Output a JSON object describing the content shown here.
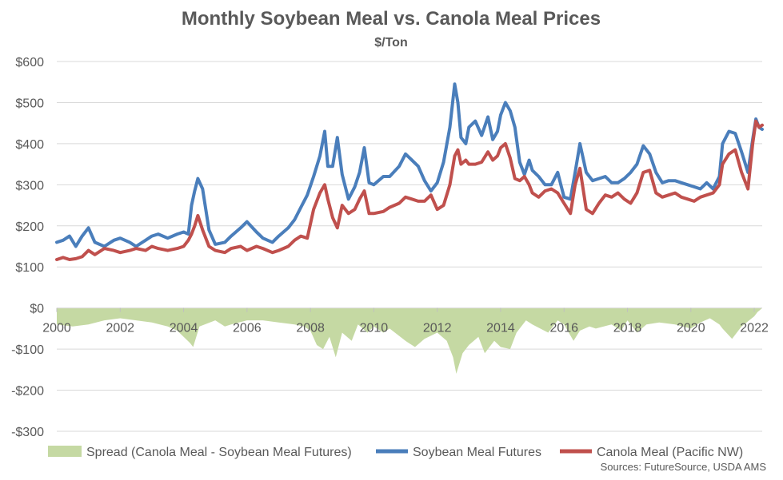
{
  "chart_data": {
    "type": "line",
    "title": "Monthly Soybean Meal vs. Canola Meal Prices",
    "subtitle": "$/Ton",
    "source": "Sources: FutureSource, USDA AMS",
    "ylim": [
      -300,
      600
    ],
    "y_ticks": [
      -300,
      -200,
      -100,
      0,
      100,
      200,
      300,
      400,
      500,
      600
    ],
    "y_tick_labels": [
      "-$300",
      "-$200",
      "-$100",
      "$0",
      "$100",
      "$200",
      "$300",
      "$400",
      "$500",
      "$600"
    ],
    "x_ticks": [
      2000,
      2002,
      2004,
      2006,
      2008,
      2010,
      2012,
      2014,
      2016,
      2018,
      2020,
      2022
    ],
    "x_tick_labels": [
      "2000",
      "2002",
      "2004",
      "2006",
      "2008",
      "2010",
      "2012",
      "2014",
      "2016",
      "2018",
      "2020",
      "2022"
    ],
    "xlim": [
      2000.0,
      2022.25
    ],
    "grid": "horizontal",
    "legend_position": "bottom",
    "series": [
      {
        "name": "Spread (Canola Meal - Soybean Meal Futures)",
        "type": "area",
        "color": "#c5d9a3",
        "x": [
          2000.0,
          2000.5,
          2001.0,
          2001.5,
          2002.0,
          2002.5,
          2003.0,
          2003.5,
          2003.8,
          2004.0,
          2004.2,
          2004.3,
          2004.5,
          2005.0,
          2005.3,
          2005.5,
          2006.0,
          2006.5,
          2007.0,
          2007.5,
          2007.8,
          2008.0,
          2008.2,
          2008.4,
          2008.6,
          2008.8,
          2009.0,
          2009.3,
          2009.5,
          2009.8,
          2010.0,
          2010.3,
          2010.5,
          2011.0,
          2011.3,
          2011.6,
          2012.0,
          2012.3,
          2012.5,
          2012.6,
          2012.8,
          2013.0,
          2013.3,
          2013.5,
          2013.8,
          2014.0,
          2014.3,
          2014.5,
          2014.8,
          2015.0,
          2015.5,
          2015.8,
          2016.0,
          2016.3,
          2016.5,
          2016.8,
          2017.0,
          2017.5,
          2017.8,
          2018.0,
          2018.3,
          2018.6,
          2019.0,
          2019.5,
          2020.0,
          2020.3,
          2020.6,
          2020.9,
          2021.0,
          2021.3,
          2021.6,
          2022.0,
          2022.1,
          2022.25
        ],
        "values": [
          -40,
          -45,
          -40,
          -30,
          -25,
          -30,
          -35,
          -45,
          -55,
          -70,
          -85,
          -95,
          -45,
          -30,
          -45,
          -40,
          -30,
          -30,
          -35,
          -40,
          -45,
          -55,
          -90,
          -100,
          -70,
          -120,
          -60,
          -80,
          -40,
          -60,
          -45,
          -60,
          -50,
          -80,
          -95,
          -75,
          -60,
          -80,
          -120,
          -160,
          -110,
          -90,
          -70,
          -110,
          -80,
          -95,
          -100,
          -60,
          -30,
          -40,
          -60,
          -30,
          -40,
          -80,
          -55,
          -45,
          -50,
          -40,
          -55,
          -30,
          -60,
          -40,
          -35,
          -40,
          -50,
          -35,
          -25,
          -40,
          -50,
          -75,
          -45,
          -20,
          -10,
          0
        ]
      },
      {
        "name": "Soybean Meal Futures",
        "type": "line",
        "color": "#4a7ebb",
        "x": [
          2000.0,
          2000.2,
          2000.4,
          2000.6,
          2000.8,
          2001.0,
          2001.2,
          2001.5,
          2001.8,
          2002.0,
          2002.3,
          2002.5,
          2002.8,
          2003.0,
          2003.2,
          2003.5,
          2003.8,
          2004.0,
          2004.15,
          2004.25,
          2004.35,
          2004.45,
          2004.6,
          2004.8,
          2005.0,
          2005.3,
          2005.5,
          2005.8,
          2006.0,
          2006.3,
          2006.5,
          2006.8,
          2007.0,
          2007.3,
          2007.5,
          2007.7,
          2007.9,
          2008.1,
          2008.3,
          2008.45,
          2008.55,
          2008.7,
          2008.85,
          2009.0,
          2009.2,
          2009.4,
          2009.55,
          2009.7,
          2009.85,
          2010.0,
          2010.3,
          2010.5,
          2010.8,
          2011.0,
          2011.2,
          2011.4,
          2011.6,
          2011.8,
          2012.0,
          2012.2,
          2012.4,
          2012.55,
          2012.65,
          2012.75,
          2012.9,
          2013.0,
          2013.2,
          2013.4,
          2013.6,
          2013.75,
          2013.9,
          2014.0,
          2014.15,
          2014.3,
          2014.45,
          2014.6,
          2014.75,
          2014.9,
          2015.0,
          2015.2,
          2015.4,
          2015.6,
          2015.8,
          2016.0,
          2016.2,
          2016.35,
          2016.5,
          2016.7,
          2016.9,
          2017.1,
          2017.3,
          2017.5,
          2017.7,
          2017.9,
          2018.1,
          2018.3,
          2018.5,
          2018.7,
          2018.9,
          2019.1,
          2019.3,
          2019.5,
          2019.7,
          2019.9,
          2020.1,
          2020.3,
          2020.5,
          2020.7,
          2020.9,
          2021.0,
          2021.2,
          2021.4,
          2021.6,
          2021.8,
          2021.95,
          2022.05,
          2022.15,
          2022.25
        ],
        "values": [
          160,
          165,
          175,
          150,
          175,
          195,
          160,
          150,
          165,
          170,
          160,
          150,
          165,
          175,
          180,
          170,
          180,
          185,
          180,
          250,
          285,
          315,
          290,
          190,
          155,
          160,
          175,
          195,
          210,
          185,
          170,
          160,
          175,
          195,
          215,
          245,
          275,
          320,
          370,
          430,
          345,
          345,
          415,
          325,
          265,
          295,
          330,
          390,
          305,
          300,
          320,
          320,
          345,
          375,
          360,
          345,
          310,
          285,
          305,
          355,
          440,
          545,
          500,
          415,
          400,
          440,
          455,
          420,
          465,
          410,
          430,
          470,
          500,
          480,
          440,
          355,
          325,
          360,
          335,
          320,
          300,
          300,
          330,
          270,
          265,
          330,
          400,
          330,
          310,
          315,
          320,
          305,
          305,
          315,
          330,
          350,
          395,
          375,
          330,
          305,
          310,
          310,
          305,
          300,
          295,
          290,
          305,
          290,
          320,
          400,
          430,
          425,
          380,
          330,
          410,
          460,
          440,
          435
        ]
      },
      {
        "name": "Canola Meal (Pacific NW)",
        "type": "line",
        "color": "#c0504d",
        "x": [
          2000.0,
          2000.2,
          2000.4,
          2000.6,
          2000.8,
          2001.0,
          2001.2,
          2001.5,
          2001.8,
          2002.0,
          2002.3,
          2002.5,
          2002.8,
          2003.0,
          2003.2,
          2003.5,
          2003.8,
          2004.0,
          2004.15,
          2004.25,
          2004.35,
          2004.45,
          2004.6,
          2004.8,
          2005.0,
          2005.3,
          2005.5,
          2005.8,
          2006.0,
          2006.3,
          2006.5,
          2006.8,
          2007.0,
          2007.3,
          2007.5,
          2007.7,
          2007.9,
          2008.1,
          2008.3,
          2008.45,
          2008.55,
          2008.7,
          2008.85,
          2009.0,
          2009.2,
          2009.4,
          2009.55,
          2009.7,
          2009.85,
          2010.0,
          2010.3,
          2010.5,
          2010.8,
          2011.0,
          2011.2,
          2011.4,
          2011.6,
          2011.8,
          2012.0,
          2012.2,
          2012.4,
          2012.55,
          2012.65,
          2012.75,
          2012.9,
          2013.0,
          2013.2,
          2013.4,
          2013.6,
          2013.75,
          2013.9,
          2014.0,
          2014.15,
          2014.3,
          2014.45,
          2014.6,
          2014.75,
          2014.9,
          2015.0,
          2015.2,
          2015.4,
          2015.6,
          2015.8,
          2016.0,
          2016.2,
          2016.35,
          2016.5,
          2016.7,
          2016.9,
          2017.1,
          2017.3,
          2017.5,
          2017.7,
          2017.9,
          2018.1,
          2018.3,
          2018.5,
          2018.7,
          2018.9,
          2019.1,
          2019.3,
          2019.5,
          2019.7,
          2019.9,
          2020.1,
          2020.3,
          2020.5,
          2020.7,
          2020.9,
          2021.0,
          2021.2,
          2021.4,
          2021.6,
          2021.8,
          2021.95,
          2022.05,
          2022.15,
          2022.25
        ],
        "values": [
          118,
          123,
          118,
          120,
          125,
          140,
          130,
          145,
          140,
          135,
          140,
          145,
          140,
          150,
          145,
          140,
          145,
          150,
          165,
          180,
          200,
          225,
          190,
          150,
          140,
          135,
          145,
          150,
          140,
          150,
          145,
          135,
          140,
          150,
          165,
          175,
          170,
          240,
          280,
          300,
          265,
          220,
          195,
          250,
          230,
          240,
          265,
          285,
          230,
          230,
          235,
          245,
          255,
          270,
          265,
          260,
          260,
          275,
          240,
          250,
          300,
          370,
          385,
          350,
          360,
          350,
          350,
          355,
          380,
          360,
          370,
          390,
          400,
          365,
          315,
          310,
          320,
          300,
          280,
          270,
          285,
          290,
          280,
          255,
          230,
          300,
          340,
          240,
          230,
          255,
          275,
          270,
          280,
          265,
          255,
          280,
          330,
          335,
          280,
          270,
          275,
          280,
          270,
          265,
          260,
          270,
          275,
          280,
          300,
          350,
          375,
          385,
          330,
          290,
          400,
          455,
          440,
          445
        ]
      }
    ]
  }
}
